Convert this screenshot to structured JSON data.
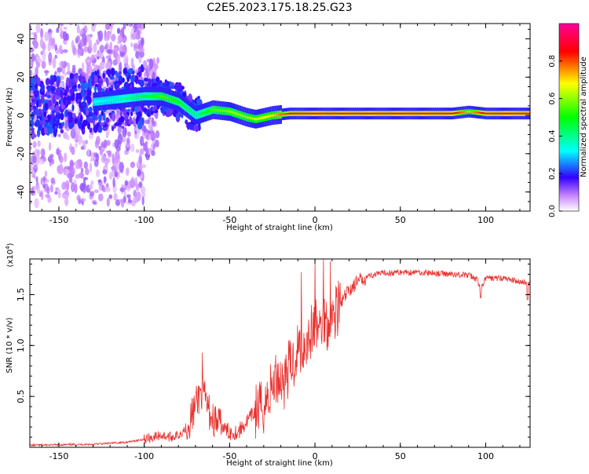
{
  "title": "C2E5.2023.175.18.25.G23",
  "chart_data": [
    {
      "type": "heatmap",
      "xlabel": "Height of straight line (km)",
      "ylabel": "Frequency (Hz)",
      "xlim": [
        -167,
        126
      ],
      "ylim": [
        -50,
        48
      ],
      "x_ticks": [
        -150,
        -100,
        -50,
        0,
        50,
        100
      ],
      "y_ticks": [
        -40,
        -20,
        0,
        20,
        40
      ],
      "colorbar": {
        "label": "Normalized spectral amplitude",
        "range": [
          0,
          1
        ],
        "ticks": [
          "0.0",
          "0.2",
          "0.4",
          "0.6",
          "0.8"
        ],
        "colors": [
          "#ffffff",
          "#cc66ff",
          "#3300ff",
          "#00ffff",
          "#00ff00",
          "#ffff00",
          "#ff0000",
          "#ff0099"
        ]
      },
      "ridge": {
        "description_points_x": [
          -167,
          -140,
          -120,
          -100,
          -90,
          -80,
          -70,
          -60,
          -50,
          -40,
          -35,
          -25,
          -15,
          -5,
          0,
          20,
          50,
          80,
          90,
          100,
          126
        ],
        "frequency_hz": [
          4,
          6,
          8,
          10,
          10,
          7,
          0,
          3,
          2,
          -1,
          -2,
          0,
          1,
          1,
          1,
          1,
          1,
          1,
          2,
          1,
          1
        ],
        "amplitude": [
          0.25,
          0.3,
          0.35,
          0.45,
          0.55,
          0.5,
          0.4,
          0.55,
          0.6,
          0.6,
          0.65,
          0.7,
          0.85,
          0.9,
          0.9,
          0.9,
          0.9,
          0.9,
          0.7,
          0.9,
          0.9
        ]
      }
    },
    {
      "type": "line",
      "xlabel": "Height of straight line (km)",
      "ylabel": "SNR (10 * v/v)",
      "yscale_label": "(x10",
      "yscale_exp": "4",
      "yscale_close": ")",
      "xlim": [
        -167,
        126
      ],
      "ylim": [
        0,
        1.85
      ],
      "x_ticks": [
        -150,
        -100,
        -50,
        0,
        50,
        100
      ],
      "y_ticks": [
        "0.5",
        "1.0",
        "1.5"
      ],
      "color": "#e8322f",
      "series": [
        {
          "x": [
            -167,
            -130,
            -110,
            -100,
            -95,
            -90,
            -85,
            -80,
            -75,
            -70,
            -67,
            -65,
            -62,
            -60,
            -55,
            -50,
            -45,
            -40,
            -35,
            -30,
            -25,
            -22,
            -18,
            -15,
            -12,
            -10,
            -8,
            -5,
            -3,
            0,
            3,
            5,
            8,
            10,
            12,
            15,
            20,
            25,
            30,
            40,
            50,
            60,
            70,
            80,
            90,
            95,
            97,
            100,
            110,
            120,
            126
          ],
          "y": [
            0.02,
            0.03,
            0.05,
            0.08,
            0.1,
            0.12,
            0.1,
            0.12,
            0.2,
            0.4,
            0.55,
            0.5,
            0.35,
            0.28,
            0.2,
            0.15,
            0.15,
            0.25,
            0.35,
            0.4,
            0.6,
            0.7,
            0.65,
            0.8,
            0.85,
            1.0,
            0.95,
            1.05,
            1.1,
            1.2,
            1.15,
            1.3,
            1.2,
            1.25,
            1.35,
            1.4,
            1.55,
            1.62,
            1.68,
            1.71,
            1.72,
            1.72,
            1.71,
            1.7,
            1.69,
            1.65,
            1.55,
            1.66,
            1.66,
            1.63,
            1.61
          ]
        }
      ],
      "spikes": [
        {
          "x": -66,
          "y": 0.93
        },
        {
          "x": -8,
          "y": 1.72
        },
        {
          "x": 0,
          "y": 1.85
        },
        {
          "x": 5,
          "y": 1.85
        },
        {
          "x": 9,
          "y": 1.83
        }
      ]
    }
  ]
}
